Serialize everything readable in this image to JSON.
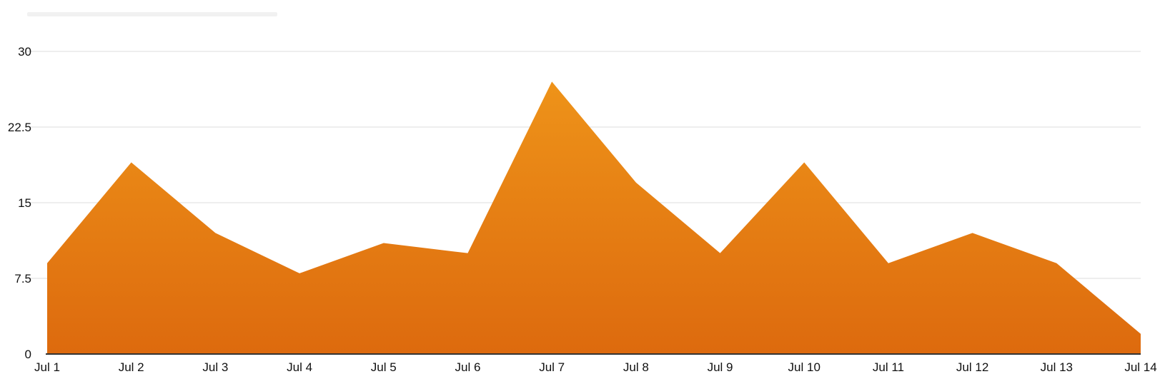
{
  "chart_data": {
    "type": "area",
    "title": "",
    "xlabel": "",
    "ylabel": "",
    "categories": [
      "Jul 1",
      "Jul 2",
      "Jul 3",
      "Jul 4",
      "Jul 5",
      "Jul 6",
      "Jul 7",
      "Jul 8",
      "Jul 9",
      "Jul 10",
      "Jul 11",
      "Jul 12",
      "Jul 13",
      "Jul 14"
    ],
    "series": [
      {
        "values": [
          9,
          19,
          12,
          8,
          11,
          10,
          27,
          17,
          10,
          19,
          9,
          12,
          9,
          2
        ]
      }
    ],
    "ylim": [
      0,
      30
    ],
    "yticks": [
      "0",
      "7.5",
      "15",
      "22.5",
      "30"
    ],
    "grid": "horizontal",
    "legend": "none",
    "colors": {
      "fill_top": "#ee9319",
      "fill_bottom": "#dd6a0e",
      "grid": "#eeeeee",
      "axis": "#333333"
    }
  }
}
